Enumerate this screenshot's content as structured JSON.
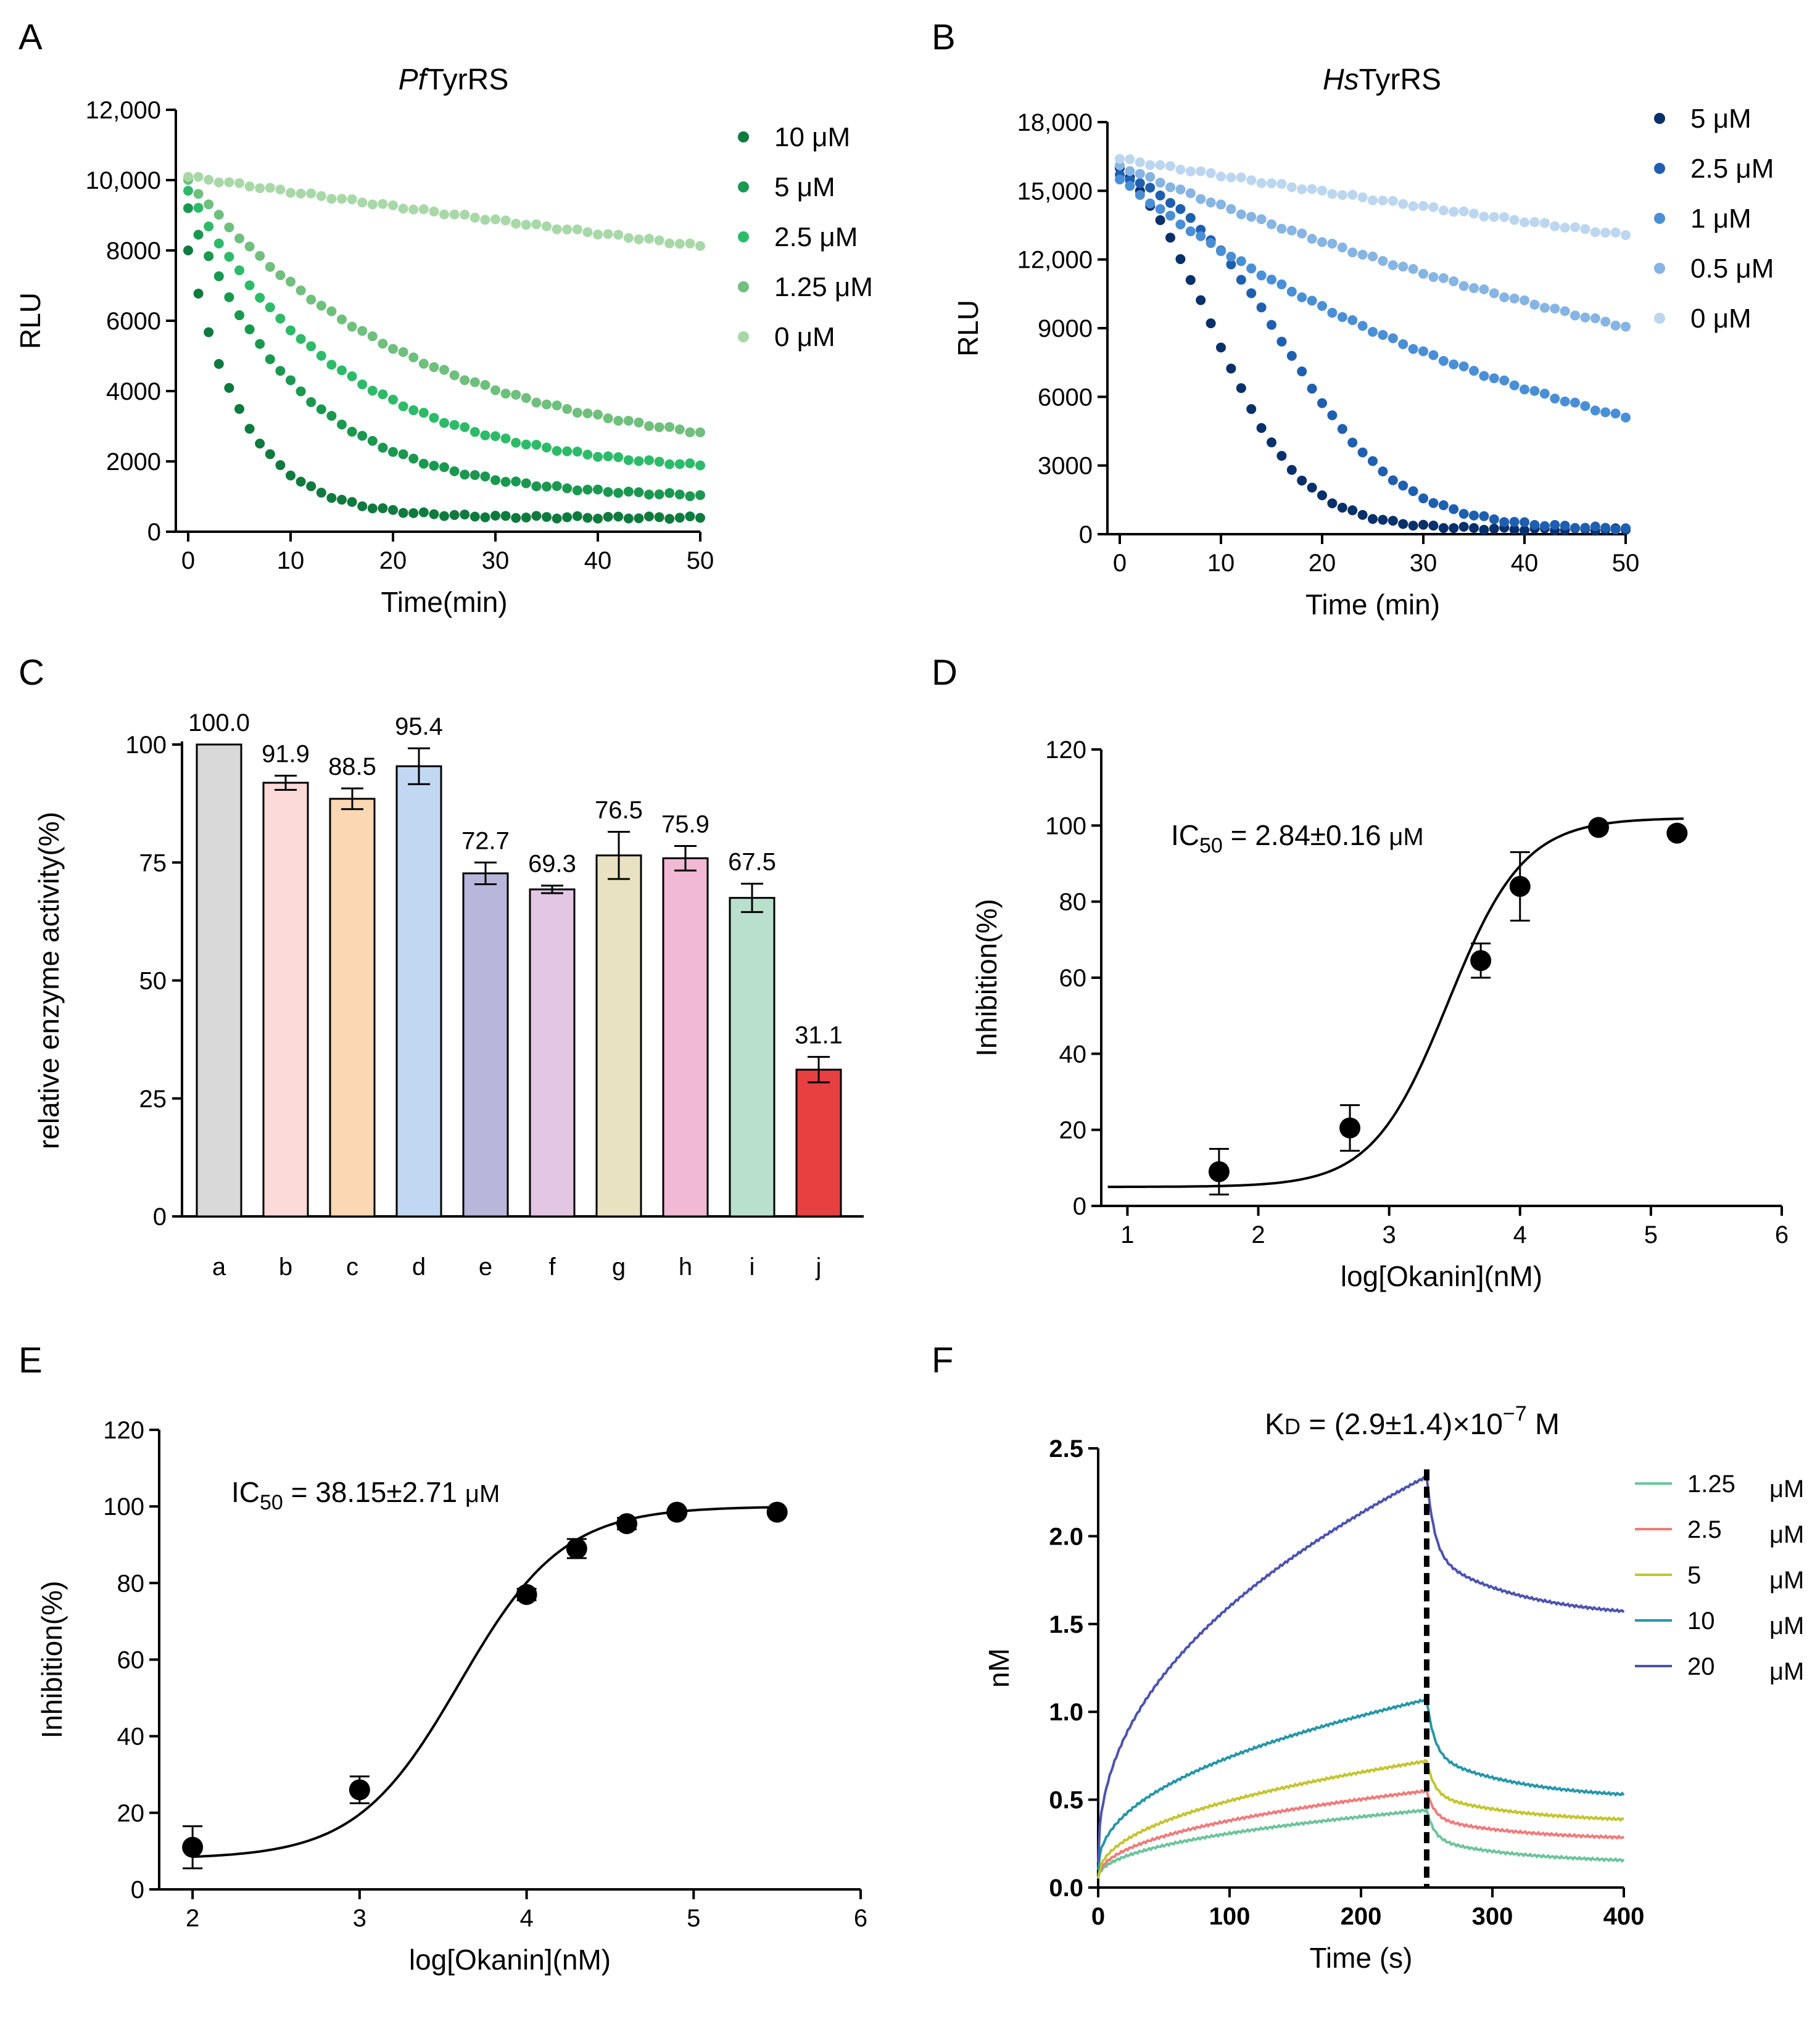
{
  "chart_data": [
    {
      "panel": "A",
      "type": "scatter",
      "title_italic": "Pf",
      "title_rest": "TyrRS",
      "xlabel": "Time(min)",
      "ylabel": "RLU",
      "xlim": [
        0,
        50
      ],
      "ylim": [
        0,
        12000
      ],
      "xticks": [
        "0",
        "10",
        "20",
        "30",
        "40",
        "50"
      ],
      "yticks": [
        "0",
        "2000",
        "4000",
        "6000",
        "8000",
        "10,000",
        "12,000"
      ],
      "colors": [
        "#0f7a3e",
        "#1a9850",
        "#2dbb6a",
        "#6fbf7d",
        "#a8d8a8"
      ],
      "legend": [
        "10 μM",
        "5 μM",
        "2.5 μM",
        "1.25 μM",
        "0 μM"
      ],
      "series": [
        {
          "name": "10 μM",
          "start": 8000,
          "plateau": 400,
          "tau": 5.5,
          "decay": "exp",
          "points": 51
        },
        {
          "name": "5 μM",
          "start": 9200,
          "plateau": 950,
          "tau": 11,
          "decay": "exp",
          "points": 51
        },
        {
          "name": "2.5 μM",
          "start": 9700,
          "plateau": 1600,
          "tau": 15,
          "decay": "exp",
          "points": 51
        },
        {
          "name": "1.25 μM",
          "start": 10000,
          "plateau": 2000,
          "tau": 22,
          "decay": "exp",
          "points": 51
        },
        {
          "name": "0 μM",
          "start": 10100,
          "plateau": 0,
          "tau": 230,
          "decay": "exp",
          "points": 51
        }
      ]
    },
    {
      "panel": "B",
      "type": "scatter",
      "title_italic": "Hs",
      "title_rest": "TyrRS",
      "xlabel": "Time (min)",
      "ylabel": "RLU",
      "xlim": [
        0,
        50
      ],
      "ylim": [
        0,
        18000
      ],
      "xticks": [
        "0",
        "10",
        "20",
        "30",
        "40",
        "50"
      ],
      "yticks": [
        "0",
        "3000",
        "6000",
        "9000",
        "12,000",
        "15,000",
        "18,000"
      ],
      "colors": [
        "#08306b",
        "#1f5fb0",
        "#4a8fd6",
        "#86b4e3",
        "#bcd6ef"
      ],
      "legend": [
        "5 μM",
        "2.5 μM",
        "1 μM",
        "0.5 μM",
        "0 μM"
      ],
      "series": [
        {
          "name": "5 μM",
          "start": 16000,
          "plateau": 200,
          "mid": 9,
          "k": 0.22,
          "decay": "sigmoid",
          "points": 51
        },
        {
          "name": "2.5 μM",
          "start": 15700,
          "plateau": 200,
          "mid": 16,
          "k": 0.17,
          "decay": "sigmoid",
          "points": 51
        },
        {
          "name": "1 μM",
          "start": 15500,
          "plateau": 0,
          "tau": 45,
          "decay": "exp",
          "points": 51
        },
        {
          "name": "0.5 μM",
          "start": 16100,
          "plateau": 0,
          "tau": 87,
          "decay": "exp",
          "points": 51
        },
        {
          "name": "0 μM",
          "start": 16400,
          "plateau": 0,
          "tau": 220,
          "decay": "exp",
          "points": 51
        }
      ]
    },
    {
      "panel": "C",
      "type": "bar",
      "ylabel": "relative enzyme activity(%)",
      "ylim": [
        0,
        100
      ],
      "yticks": [
        "0",
        "25",
        "50",
        "75",
        "100"
      ],
      "categories": [
        "a",
        "b",
        "c",
        "d",
        "e",
        "f",
        "g",
        "h",
        "i",
        "j"
      ],
      "values": [
        100.0,
        91.9,
        88.5,
        95.4,
        72.7,
        69.3,
        76.5,
        75.9,
        67.5,
        31.1
      ],
      "value_labels": [
        "100.0",
        "91.9",
        "88.5",
        "95.4",
        "72.7",
        "69.3",
        "76.5",
        "75.9",
        "67.5",
        "31.1"
      ],
      "errors": [
        0,
        1.5,
        2.2,
        3.8,
        2.3,
        0.8,
        5.0,
        2.6,
        3.0,
        2.7
      ],
      "colors": [
        "#d9d9d9",
        "#fcdada",
        "#fbd7b4",
        "#c2d8f2",
        "#b9b6dc",
        "#e3c6e3",
        "#e9e2c2",
        "#f2b9d4",
        "#b9e0cd",
        "#e84040"
      ]
    },
    {
      "panel": "D",
      "type": "scatter",
      "xlabel": "log[Okanin](nM)",
      "ylabel": "Inhibition(%)",
      "xlim": [
        0.8,
        6
      ],
      "ylim": [
        0,
        120
      ],
      "xticks": [
        "1",
        "2",
        "3",
        "4",
        "5",
        "6"
      ],
      "yticks": [
        "0",
        "20",
        "40",
        "60",
        "80",
        "100",
        "120"
      ],
      "ic50_prefix": "IC",
      "ic50_sub": "50",
      "ic50_value": "= 2.84±0.16",
      "ic50_unit": "μM",
      "x": [
        1.7,
        2.7,
        3.7,
        4.0,
        4.6,
        5.2
      ],
      "y": [
        9,
        20.5,
        64.5,
        84,
        99.5,
        98
      ],
      "errors": [
        6,
        6,
        4.5,
        9,
        0,
        0
      ],
      "fit": {
        "bottom": 5,
        "top": 102,
        "logec50": 3.45,
        "hill": 1.5
      }
    },
    {
      "panel": "E",
      "type": "scatter",
      "xlabel": "log[Okanin](nM)",
      "ylabel": "Inhibition(%)",
      "xlim": [
        1.8,
        6
      ],
      "ylim": [
        0,
        120
      ],
      "xticks": [
        "2",
        "3",
        "4",
        "5",
        "6"
      ],
      "yticks": [
        "0",
        "20",
        "40",
        "60",
        "80",
        "100",
        "120"
      ],
      "ic50_prefix": "IC",
      "ic50_sub": "50",
      "ic50_value": "= 38.15±2.71",
      "ic50_unit": "μM",
      "x": [
        2.0,
        3.0,
        4.0,
        4.3,
        4.6,
        4.9,
        5.5
      ],
      "y": [
        11,
        26,
        77,
        89,
        95.5,
        98.5,
        98.5
      ],
      "errors": [
        5.5,
        3.5,
        1.5,
        2.5,
        1.5,
        0,
        0
      ],
      "fit": {
        "bottom": 8,
        "top": 100,
        "logec50": 3.6,
        "hill": 1.4
      }
    },
    {
      "panel": "F",
      "type": "line",
      "title_prefix": "K",
      "title_sub": "D",
      "title_main": "= (2.9±1.4)×10",
      "title_sup": "−7",
      "title_unit": "M",
      "xlabel": "Time (s)",
      "ylabel": "nM",
      "xlim": [
        0,
        400
      ],
      "ylim": [
        0,
        2.5
      ],
      "xticks": [
        "0",
        "100",
        "200",
        "300",
        "400"
      ],
      "yticks": [
        "0.0",
        "0.5",
        "1.0",
        "1.5",
        "2.0",
        "2.5"
      ],
      "dissociation_start": 250,
      "legend_values": [
        "1.25",
        "2.5",
        "5",
        "10",
        "20"
      ],
      "legend_unit": "μM",
      "colors": [
        "#6cc49a",
        "#f07a7a",
        "#c4c430",
        "#2596a8",
        "#4b52b0"
      ],
      "series": [
        {
          "name": "1.25 μM",
          "y0": 0.05,
          "yend": 0.44,
          "off": 0.14
        },
        {
          "name": "2.5 μM",
          "y0": 0.05,
          "yend": 0.55,
          "off": 0.27
        },
        {
          "name": "5 μM",
          "y0": 0.05,
          "yend": 0.72,
          "off": 0.37
        },
        {
          "name": "10 μM",
          "y0": 0.1,
          "yend": 1.07,
          "off": 0.5
        },
        {
          "name": "20 μM",
          "y0": 0.15,
          "yend": 2.34,
          "off": 1.53
        }
      ]
    }
  ]
}
